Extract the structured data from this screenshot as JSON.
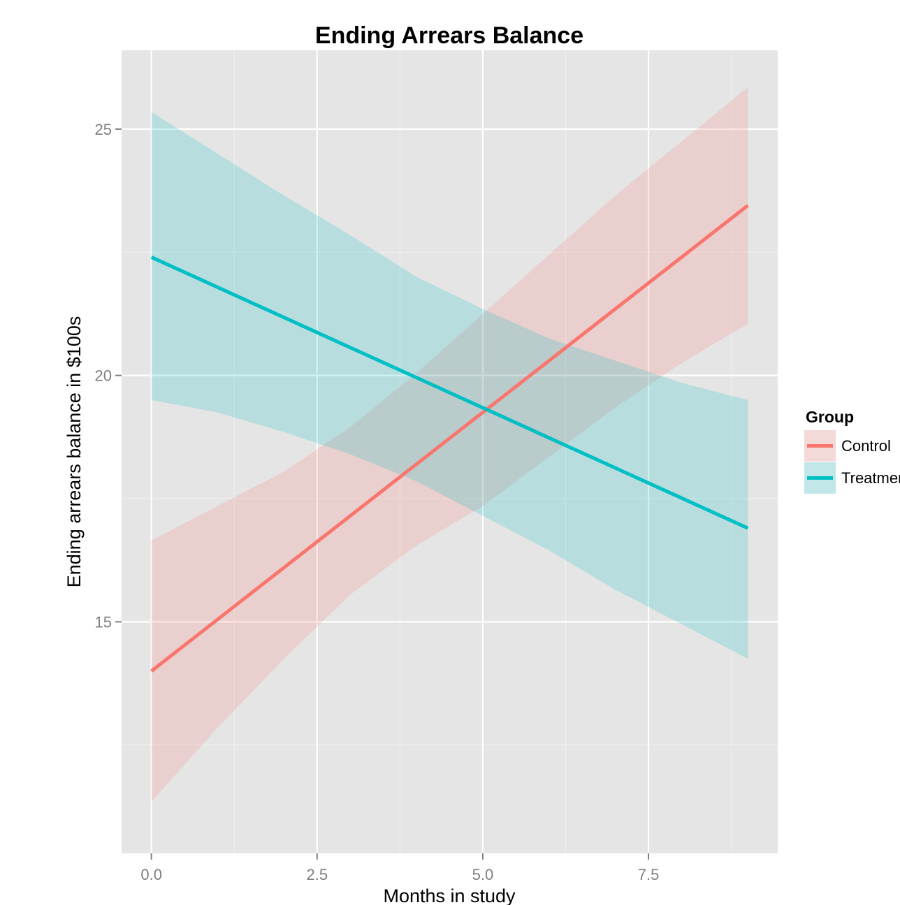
{
  "chart_data": {
    "type": "line",
    "title": "Ending Arrears Balance",
    "xlabel": "Months in study",
    "ylabel": "Ending arrears balance in $100s",
    "xlim": [
      -0.45,
      9.45
    ],
    "ylim": [
      10.3,
      26.6
    ],
    "x_ticks": [
      0.0,
      2.5,
      5.0,
      7.5
    ],
    "x_tick_labels": [
      "0.0",
      "2.5",
      "5.0",
      "7.5"
    ],
    "y_ticks": [
      15,
      20,
      25
    ],
    "y_tick_labels": [
      "15",
      "20",
      "25"
    ],
    "grid": true,
    "legend_position": "right",
    "legend_title": "Group",
    "series": [
      {
        "name": "Control",
        "color": "#F8766D",
        "x": [
          0,
          9
        ],
        "y": [
          14.0,
          23.45
        ],
        "band": {
          "x": [
            0,
            1,
            2,
            3,
            4,
            5,
            6,
            7,
            8,
            9
          ],
          "lower": [
            11.35,
            12.85,
            14.25,
            15.55,
            16.55,
            17.35,
            18.35,
            19.35,
            20.25,
            21.05
          ],
          "upper": [
            16.65,
            17.35,
            18.05,
            18.95,
            20.05,
            21.25,
            22.45,
            23.65,
            24.75,
            25.85
          ]
        }
      },
      {
        "name": "Treatment",
        "color": "#00BFC4",
        "x": [
          0,
          9
        ],
        "y": [
          22.4,
          16.9
        ],
        "band": {
          "x": [
            0,
            1,
            2,
            3,
            4,
            5,
            6,
            7,
            8,
            9
          ],
          "lower": [
            19.5,
            19.25,
            18.85,
            18.4,
            17.85,
            17.15,
            16.45,
            15.65,
            14.95,
            14.25
          ],
          "upper": [
            25.35,
            24.5,
            23.65,
            22.85,
            22.0,
            21.35,
            20.75,
            20.3,
            19.85,
            19.5
          ]
        }
      }
    ]
  }
}
